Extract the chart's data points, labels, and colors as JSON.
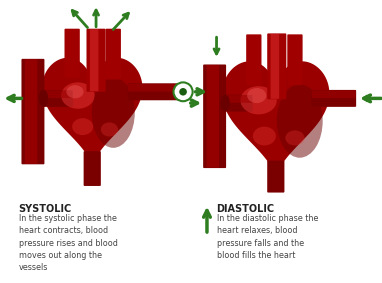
{
  "bg_color": "#ffffff",
  "systolic_label": "SYSTOLIC",
  "systolic_text": "In the systolic phase the\nheart contracts, blood\npressure rises and blood\nmoves out along the\nvessels",
  "diastolic_label": "DIASTOLIC",
  "diastolic_text": "In the diastolic phase the\nheart relaxes, blood\npressure falls and the\nblood fills the heart",
  "label_fontsize": 7.0,
  "body_fontsize": 5.8,
  "heart_dark": "#6B0000",
  "heart_mid": "#9B0000",
  "heart_bright": "#CC1111",
  "heart_highlight": "#E03030",
  "heart_sheen": "#F06060",
  "vessel_dark": "#7A0000",
  "vessel_mid": "#A00000",
  "vessel_tube": "#8B0000",
  "arrow_green": "#2E7D20",
  "arrow_green_dark": "#1A5C10",
  "text_color": "#222222",
  "text_body_color": "#444444"
}
